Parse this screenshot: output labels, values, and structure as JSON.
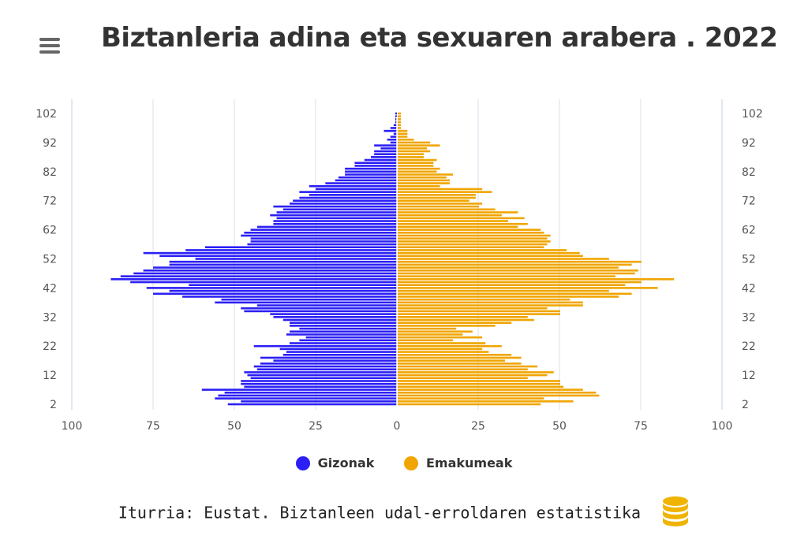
{
  "header": {
    "menu_icon": "hamburger-menu-icon",
    "title": "Biztanleria adina eta sexuaren arabera . 2022"
  },
  "footer": {
    "source": "Iturria: Eustat. Biztanleen udal-erroldaren estatistika",
    "source_icon": "database-icon"
  },
  "colors": {
    "male": "#2b1ff5",
    "female": "#f0a500",
    "grid": "#d8e0ea"
  },
  "chart_data": {
    "type": "bar",
    "orientation": "horizontal-population-pyramid",
    "title": "Biztanleria adina eta sexuaren arabera . 2022",
    "xlim": [
      -100,
      100
    ],
    "x_ticks": [
      "100",
      "75",
      "50",
      "25",
      "0",
      "25",
      "50",
      "75",
      "100"
    ],
    "y_ticks": [
      "102",
      "92",
      "82",
      "72",
      "62",
      "52",
      "42",
      "32",
      "22",
      "12",
      "2"
    ],
    "grid": true,
    "legend_position": "bottom",
    "categories": [
      2,
      3,
      4,
      5,
      6,
      7,
      8,
      9,
      10,
      11,
      12,
      13,
      14,
      15,
      16,
      17,
      18,
      19,
      20,
      21,
      22,
      23,
      24,
      25,
      26,
      27,
      28,
      29,
      30,
      31,
      32,
      33,
      34,
      35,
      36,
      37,
      38,
      39,
      40,
      41,
      42,
      43,
      44,
      45,
      46,
      47,
      48,
      49,
      50,
      51,
      52,
      53,
      54,
      55,
      56,
      57,
      58,
      59,
      60,
      61,
      62,
      63,
      64,
      65,
      66,
      67,
      68,
      69,
      70,
      71,
      72,
      73,
      74,
      75,
      76,
      77,
      78,
      79,
      80,
      81,
      82,
      83,
      84,
      85,
      86,
      87,
      88,
      89,
      90,
      91,
      92,
      93,
      94,
      95,
      96,
      97,
      98,
      99,
      100,
      101,
      102
    ],
    "series": [
      {
        "name": "Gizonak",
        "values": [
          52,
          48,
          56,
          55,
          53,
          60,
          47,
          48,
          48,
          45,
          46,
          47,
          43,
          44,
          42,
          38,
          42,
          35,
          34,
          36,
          44,
          33,
          30,
          28,
          34,
          33,
          30,
          33,
          33,
          35,
          38,
          39,
          47,
          48,
          43,
          56,
          54,
          66,
          75,
          70,
          77,
          64,
          82,
          88,
          85,
          81,
          78,
          75,
          70,
          70,
          62,
          73,
          78,
          65,
          59,
          46,
          45,
          45,
          48,
          47,
          45,
          43,
          38,
          38,
          37,
          39,
          37,
          35,
          38,
          33,
          32,
          30,
          27,
          30,
          25,
          27,
          22,
          19,
          18,
          16,
          16,
          16,
          13,
          13,
          10,
          8,
          7,
          7,
          5,
          7,
          2,
          3,
          2,
          1,
          4,
          2,
          1,
          0.5,
          0.5,
          0.5,
          0.5
        ]
      },
      {
        "name": "Emakumeak",
        "values": [
          44,
          54,
          45,
          62,
          61,
          57,
          51,
          50,
          50,
          40,
          46,
          48,
          40,
          43,
          38,
          33,
          38,
          35,
          28,
          26,
          32,
          27,
          17,
          26,
          20,
          23,
          18,
          30,
          35,
          42,
          40,
          50,
          50,
          46,
          57,
          57,
          53,
          68,
          72,
          65,
          80,
          70,
          75,
          85,
          67,
          73,
          74,
          68,
          72,
          75,
          65,
          57,
          56,
          52,
          45,
          46,
          47,
          46,
          47,
          45,
          44,
          37,
          40,
          34,
          39,
          32,
          37,
          30,
          25,
          26,
          22,
          24,
          24,
          29,
          26,
          13,
          16,
          16,
          15,
          17,
          12,
          13,
          11,
          11,
          12,
          8,
          8,
          10,
          9,
          13,
          10,
          5,
          3,
          3,
          3,
          1,
          1,
          1,
          1,
          1,
          1
        ]
      }
    ]
  }
}
